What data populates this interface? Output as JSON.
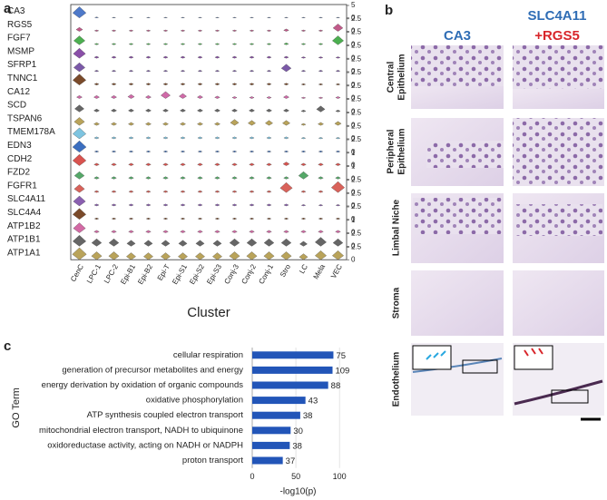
{
  "panel_labels": [
    "a",
    "b",
    "c"
  ],
  "chart_data": [
    {
      "type": "violin",
      "xlabel": "Cluster",
      "categories": [
        "CenC",
        "LPC-1",
        "LPC-2",
        "Epi-B1",
        "Epi-B2",
        "Epi-T",
        "Epi-S1",
        "Epi-S2",
        "Epi-S3",
        "Conj-3",
        "Conj-2",
        "Conj-1",
        "Stro",
        "LC",
        "Mela",
        "VEC"
      ],
      "series": [
        {
          "name": "CA3",
          "color": "#4e79c9",
          "ylim": [
            0,
            5
          ],
          "yticks": [
            0,
            5
          ],
          "values": [
            4.5,
            0.4,
            0.3,
            0.3,
            0.3,
            0.3,
            0.3,
            0.3,
            0.3,
            0.3,
            0.3,
            0.3,
            0.3,
            0.3,
            0.3,
            0.3
          ]
        },
        {
          "name": "RGS5",
          "color": "#c25a8a",
          "ylim": [
            0,
            2.5
          ],
          "yticks": [
            0,
            2.5
          ],
          "values": [
            0.8,
            0.3,
            0.3,
            0.3,
            0.3,
            0.3,
            0.3,
            0.3,
            0.3,
            0.3,
            0.3,
            0.3,
            0.5,
            0.3,
            0.3,
            1.5
          ]
        },
        {
          "name": "FGF7",
          "color": "#4caf50",
          "ylim": [
            0,
            2.5
          ],
          "yticks": [
            0,
            2.5
          ],
          "values": [
            1.8,
            0.3,
            0.3,
            0.3,
            0.3,
            0.3,
            0.3,
            0.3,
            0.3,
            0.3,
            0.3,
            0.3,
            0.4,
            0.3,
            0.3,
            1.8
          ]
        },
        {
          "name": "MSMP",
          "color": "#8a4fa8",
          "ylim": [
            0,
            2.5
          ],
          "yticks": [
            0,
            2.5
          ],
          "values": [
            2,
            0.4,
            0.4,
            0.4,
            0.4,
            0.4,
            0.4,
            0.4,
            0.4,
            0.4,
            0.4,
            0.4,
            0.4,
            0.3,
            0.3,
            0.3
          ]
        },
        {
          "name": "SFRP1",
          "color": "#7b59a8",
          "ylim": [
            0,
            2.5
          ],
          "yticks": [
            0,
            2.5
          ],
          "values": [
            1.8,
            0.3,
            0.3,
            0.3,
            0.3,
            0.3,
            0.3,
            0.3,
            0.3,
            0.3,
            0.3,
            0.3,
            1.5,
            0.3,
            0.3,
            0.3
          ]
        },
        {
          "name": "TNNC1",
          "color": "#7a4a2a",
          "ylim": [
            0,
            2.5
          ],
          "yticks": [
            0,
            2.5
          ],
          "values": [
            2.2,
            0.4,
            0.4,
            0.4,
            0.4,
            0.4,
            0.4,
            0.4,
            0.4,
            0.4,
            0.4,
            0.4,
            0.4,
            0.3,
            0.3,
            0.3
          ]
        },
        {
          "name": "CA12",
          "color": "#d06aa8",
          "ylim": [
            0,
            2.5
          ],
          "yticks": [
            0,
            2.5
          ],
          "values": [
            0.6,
            0.6,
            0.6,
            0.8,
            0.6,
            1.4,
            1.0,
            0.6,
            0.5,
            0.4,
            0.4,
            0.4,
            0.6,
            0.3,
            0.3,
            0.4
          ]
        },
        {
          "name": "SCD",
          "color": "#666666",
          "ylim": [
            0,
            2.5
          ],
          "yticks": [
            0,
            2.5
          ],
          "values": [
            1.4,
            0.6,
            0.6,
            0.6,
            0.6,
            0.6,
            0.6,
            0.6,
            0.6,
            0.6,
            0.6,
            0.6,
            0.6,
            0.4,
            1.2,
            0.4
          ]
        },
        {
          "name": "TSPAN6",
          "color": "#b9a35a",
          "ylim": [
            0,
            2.5
          ],
          "yticks": [
            0,
            2.5
          ],
          "values": [
            1.6,
            0.6,
            0.6,
            0.6,
            0.6,
            0.6,
            0.6,
            0.6,
            0.6,
            1.2,
            1.0,
            1.0,
            1.0,
            0.4,
            0.6,
            0.8
          ]
        },
        {
          "name": "TMEM178A",
          "color": "#7ec4e0",
          "ylim": [
            0,
            2.5
          ],
          "yticks": [
            0,
            2.5
          ],
          "values": [
            2.2,
            0.4,
            0.4,
            0.4,
            0.4,
            0.4,
            0.4,
            0.4,
            0.4,
            0.4,
            0.4,
            0.4,
            0.4,
            0.3,
            0.3,
            0.3
          ]
        },
        {
          "name": "EDN3",
          "color": "#3c6fc0",
          "ylim": [
            0,
            2.5
          ],
          "yticks": [
            0,
            2.5
          ],
          "values": [
            2.3,
            0.3,
            0.3,
            0.3,
            0.3,
            0.3,
            0.3,
            0.3,
            0.3,
            0.3,
            0.3,
            0.3,
            0.3,
            0.3,
            0.3,
            0.3
          ]
        },
        {
          "name": "CDH2",
          "color": "#d9534f",
          "ylim": [
            0,
            1
          ],
          "yticks": [
            0,
            1
          ],
          "values": [
            0.9,
            0.2,
            0.2,
            0.2,
            0.2,
            0.2,
            0.2,
            0.2,
            0.2,
            0.2,
            0.2,
            0.2,
            0.3,
            0.2,
            0.2,
            0.2
          ]
        },
        {
          "name": "FZD2",
          "color": "#55a868",
          "ylim": [
            0,
            1
          ],
          "yticks": [
            0,
            1
          ],
          "values": [
            0.6,
            0.2,
            0.2,
            0.2,
            0.2,
            0.2,
            0.2,
            0.2,
            0.2,
            0.2,
            0.2,
            0.2,
            0.2,
            0.6,
            0.2,
            0.2
          ]
        },
        {
          "name": "FGFR1",
          "color": "#d9625a",
          "ylim": [
            0,
            2.5
          ],
          "yticks": [
            0,
            2.5
          ],
          "values": [
            1.6,
            0.4,
            0.4,
            0.4,
            0.4,
            0.4,
            0.4,
            0.4,
            0.4,
            0.4,
            0.4,
            0.4,
            2,
            0.4,
            0.4,
            2.2
          ]
        },
        {
          "name": "SLC4A11",
          "color": "#8a5fb0",
          "ylim": [
            0,
            2.5
          ],
          "yticks": [
            0,
            2.5
          ],
          "values": [
            2,
            0.4,
            0.4,
            0.4,
            0.4,
            0.4,
            0.4,
            0.4,
            0.4,
            0.4,
            0.4,
            0.4,
            0.4,
            0.3,
            0.3,
            0.3
          ]
        },
        {
          "name": "SLC4A4",
          "color": "#7a4a2a",
          "ylim": [
            0,
            2.5
          ],
          "yticks": [
            0,
            2.5
          ],
          "values": [
            2.2,
            0.3,
            0.3,
            0.3,
            0.3,
            0.3,
            0.3,
            0.3,
            0.3,
            0.3,
            0.3,
            0.3,
            0.3,
            0.3,
            0.3,
            0.3
          ]
        },
        {
          "name": "ATP1B2",
          "color": "#d36aa5",
          "ylim": [
            0,
            1
          ],
          "yticks": [
            0,
            1
          ],
          "values": [
            0.8,
            0.2,
            0.2,
            0.2,
            0.2,
            0.2,
            0.2,
            0.2,
            0.2,
            0.2,
            0.2,
            0.2,
            0.2,
            0.2,
            0.2,
            0.2
          ]
        },
        {
          "name": "ATP1B1",
          "color": "#666666",
          "ylim": [
            0,
            2.5
          ],
          "yticks": [
            0,
            2.5
          ],
          "values": [
            2.2,
            1.5,
            1.5,
            1.2,
            1.2,
            1.2,
            1.2,
            1.2,
            1.2,
            1.5,
            1.5,
            1.5,
            1.5,
            1,
            1.8,
            1.5
          ]
        },
        {
          "name": "ATP1A1",
          "color": "#b9a35a",
          "ylim": [
            0,
            2.5
          ],
          "yticks": [
            0,
            2.5
          ],
          "values": [
            2.4,
            1.6,
            1.6,
            1.4,
            1.4,
            1.4,
            1.4,
            1.4,
            1.4,
            1.6,
            1.6,
            1.6,
            1.6,
            1.2,
            1.8,
            1.8
          ]
        }
      ]
    },
    {
      "type": "bar",
      "orientation": "horizontal",
      "ylabel": "GO Term",
      "xlabel": "-log10(p)",
      "color": "#2255b8",
      "categories": [
        "cellular respiration",
        "generation of precursor metabolites and energy",
        "energy derivation by oxidation of organic compounds",
        "oxidative phosphorylation",
        "ATP synthesis coupled electron transport",
        "mitochondrial electron transport, NADH to ubiquinone",
        "oxidoreductase activity, acting on NADH or NADPH",
        "proton transport"
      ],
      "values": [
        93,
        92,
        87,
        61,
        55,
        44,
        43,
        35
      ],
      "counts": [
        75,
        109,
        88,
        43,
        38,
        30,
        38,
        37
      ],
      "xlim": [
        0,
        105
      ],
      "xticks": [
        0,
        50,
        100
      ],
      "grid": true
    }
  ],
  "images": {
    "column_titles": [
      "CA3",
      "SLC4A11",
      "+RGS5"
    ],
    "rows": [
      [
        "Central",
        "Epithelium"
      ],
      [
        "Peripheral",
        "Epithelium"
      ],
      [
        "Limbal Niche"
      ],
      [
        "Stroma"
      ],
      [
        "Endothelium"
      ]
    ]
  }
}
